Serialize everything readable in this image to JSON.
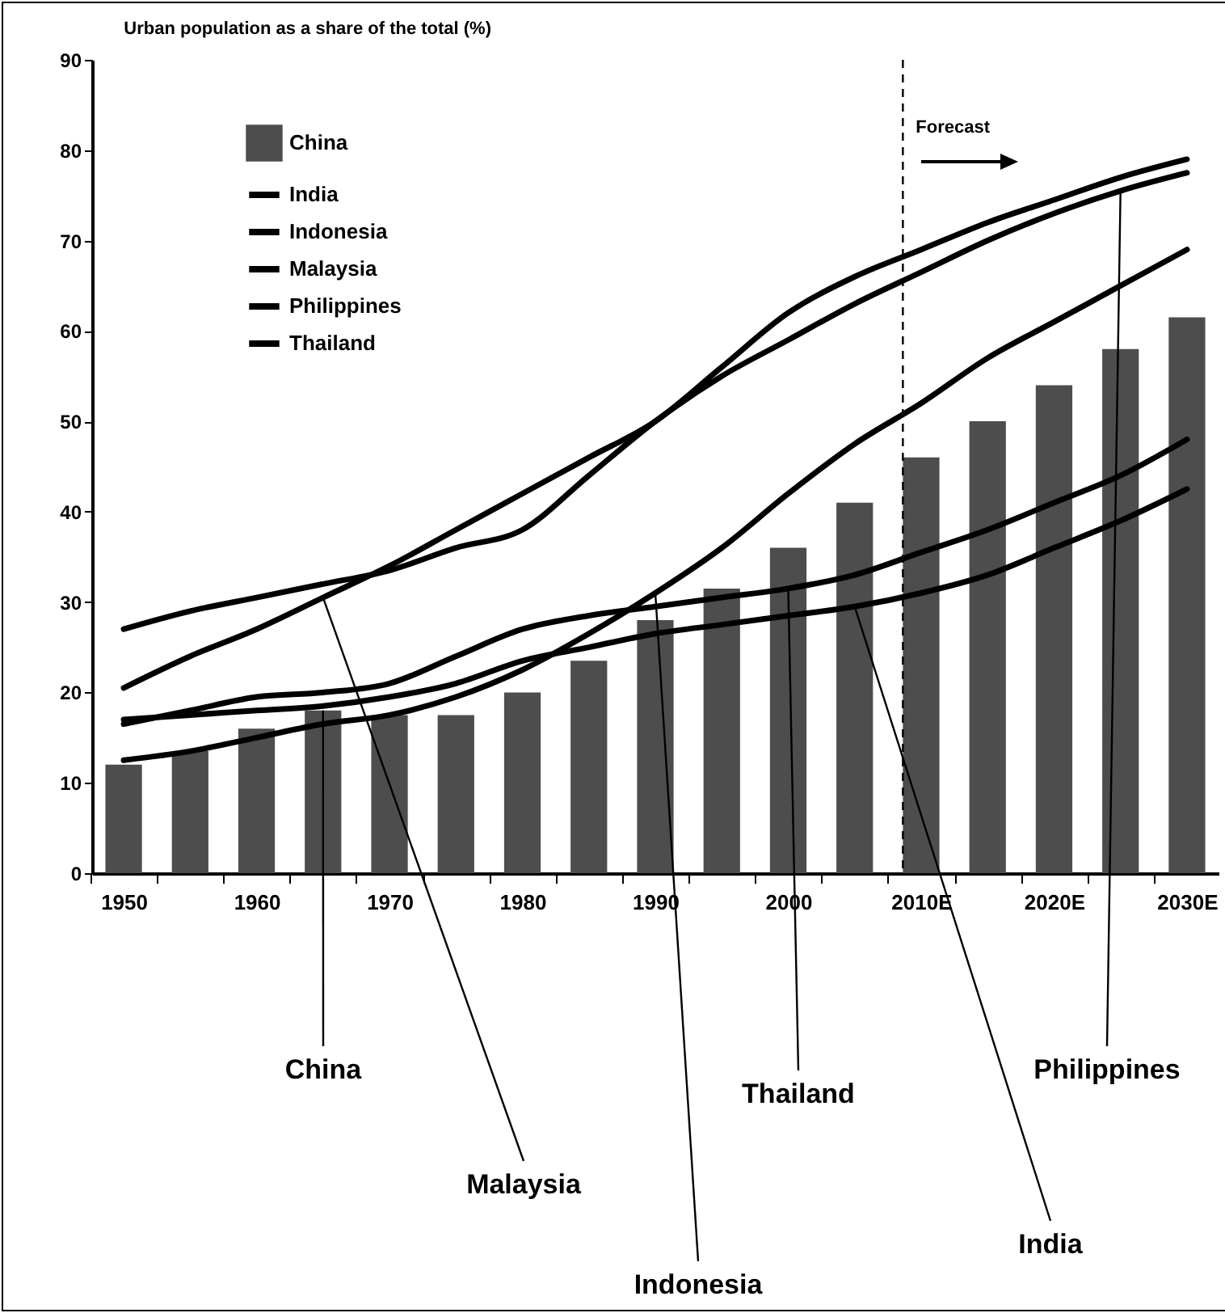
{
  "chart_data": {
    "type": "bar",
    "title": "Urban population as a share of the total (%)",
    "categories": [
      "1950",
      null,
      "1960",
      null,
      "1970",
      null,
      "1980",
      null,
      "1990",
      null,
      "2000",
      null,
      "2010E",
      null,
      "2020E",
      null,
      "2030E"
    ],
    "series": [
      {
        "name": "China",
        "color": "#4d4d4d",
        "values": [
          12,
          13.5,
          16,
          18,
          17.5,
          17.5,
          20,
          23.5,
          28,
          31.5,
          36,
          41,
          46,
          50,
          54,
          58,
          61.5
        ]
      },
      {
        "name": "India",
        "type": "line",
        "color": "#000000",
        "values": [
          17,
          17.5,
          18,
          18.5,
          19.5,
          21,
          23.5,
          25,
          26.5,
          27.5,
          28.5,
          29.5,
          31,
          33,
          36,
          39,
          42.5
        ]
      },
      {
        "name": "Indonesia",
        "type": "line",
        "color": "#000000",
        "values": [
          12.5,
          13.5,
          15,
          16.5,
          17.5,
          19.5,
          22.5,
          26.5,
          31,
          36,
          42,
          47.5,
          52,
          57,
          61,
          65,
          69
        ]
      },
      {
        "name": "Malaysia",
        "type": "line",
        "color": "#000000",
        "values": [
          20.5,
          24,
          27,
          30.5,
          34,
          38,
          42,
          46,
          50,
          56,
          62,
          66,
          69,
          72,
          74.5,
          77,
          79
        ]
      },
      {
        "name": "Philippines",
        "type": "line",
        "color": "#000000",
        "values": [
          27,
          29,
          30.5,
          32,
          33.5,
          36,
          38,
          44,
          50,
          55,
          59,
          63,
          66.5,
          70,
          73,
          75.5,
          77.5
        ]
      },
      {
        "name": "Thailand",
        "type": "line",
        "color": "#000000",
        "values": [
          16.5,
          18,
          19.5,
          20,
          21,
          24,
          27,
          28.5,
          29.5,
          30.5,
          31.5,
          33,
          35.5,
          38,
          41,
          44,
          48
        ]
      }
    ],
    "ylim": [
      0,
      90
    ],
    "yticks": [
      0,
      10,
      20,
      30,
      40,
      50,
      60,
      70,
      80,
      90
    ],
    "grid": false,
    "legend": "top left",
    "ref_lines": [
      {
        "axis": "x",
        "value": "2010E",
        "label": "Forecast",
        "line_style": "dashed"
      }
    ]
  }
}
